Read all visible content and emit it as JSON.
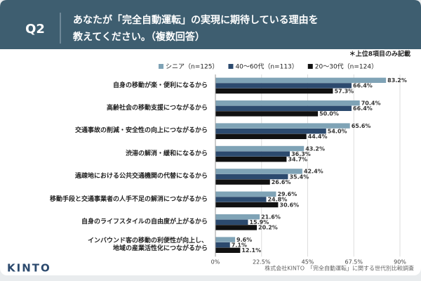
{
  "header": {
    "label": "Q2",
    "title_lines": [
      "あなたが「完全自動運転」の実現に期待している理由を",
      "教えてください。（複数回答）"
    ]
  },
  "note": "＊上位8項目のみ記載",
  "footer": {
    "logo": "KINTO",
    "source": "株式会社KINTO　「完全自動運転」に関する世代別比較調査"
  },
  "chart_data": {
    "type": "hbar",
    "categories": [
      "自身の移動が楽・便利になるから",
      "高齢社会の移動支援につながるから",
      "交通事故の削減・安全性の向上につながるから",
      "渋滞の解消・緩和になるから",
      "過疎地における公共交通機関の代替になるから",
      "移動手段と交通事業者の人手不足の解消につながるから",
      "自身のライフスタイルの自由度が上がるから",
      "インバウンド客の移動の利便性が向上し、\n地域の産業活性化につながるから"
    ],
    "series": [
      {
        "name": "シニア（n=125）",
        "color": "#7fa3b6",
        "values": [
          83.2,
          70.4,
          65.6,
          43.2,
          42.4,
          29.6,
          21.6,
          9.6
        ],
        "value_labels": [
          "83.2%",
          "70.4%",
          "65.6%",
          "43.2%",
          "42.4%",
          "29.6%",
          "21.6%",
          "9.6%"
        ]
      },
      {
        "name": "40～60代（n=113）",
        "color": "#2c4a6e",
        "values": [
          66.4,
          66.4,
          54.0,
          36.3,
          35.4,
          24.8,
          15.9,
          7.1
        ],
        "value_labels": [
          "66.4%",
          "66.4%",
          "54.0%",
          "36.3%",
          "35.4%",
          "24.8%",
          "15.9%",
          "7.1%"
        ]
      },
      {
        "name": "20～30代（n=124）",
        "color": "#111111",
        "values": [
          57.3,
          50.0,
          44.4,
          34.7,
          26.6,
          30.6,
          20.2,
          12.1
        ],
        "value_labels": [
          "57.3%",
          "50.0%",
          "44.4%",
          "34.7%",
          "26.6%",
          "30.6%",
          "20.2%",
          "12.1%"
        ]
      }
    ],
    "xlim": [
      0,
      90
    ],
    "xticks": [
      {
        "value": 0,
        "label": "0%"
      },
      {
        "value": 22.5,
        "label": "22.5%"
      },
      {
        "value": 45,
        "label": "45%"
      },
      {
        "value": 67.5,
        "label": "67.5%"
      },
      {
        "value": 90,
        "label": "90%"
      }
    ],
    "grid": true
  }
}
